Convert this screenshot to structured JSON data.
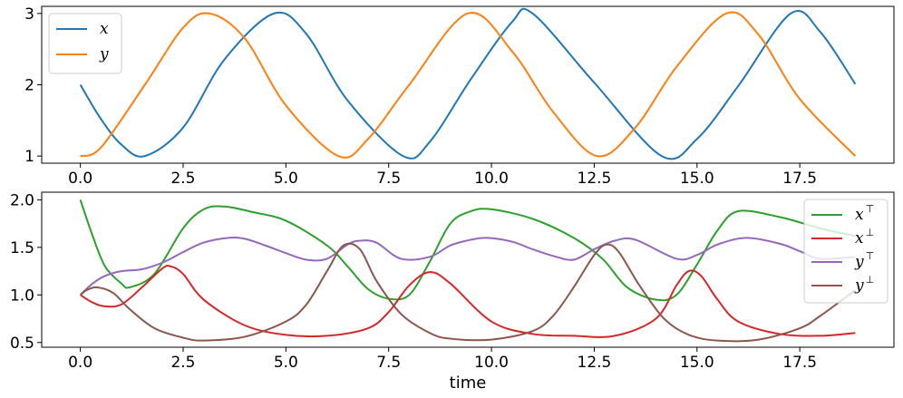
{
  "chart_data": [
    {
      "type": "line",
      "xlabel": "",
      "ylabel": "",
      "xlim": [
        -0.94,
        19.79
      ],
      "ylim": [
        0.9,
        3.1
      ],
      "xticks": [
        0,
        2.5,
        5,
        7.5,
        10,
        12.5,
        15,
        17.5
      ],
      "xtick_labels": [
        "0.0",
        "2.5",
        "5.0",
        "7.5",
        "10.0",
        "12.5",
        "15.0",
        "17.5"
      ],
      "yticks": [
        1,
        2,
        3
      ],
      "ytick_labels": [
        "1",
        "2",
        "3"
      ],
      "legend_placement": "top-left",
      "grid": false,
      "series": [
        {
          "name": "x",
          "color": "#1f77b4",
          "x": [
            0,
            0.5,
            1,
            1.57,
            2.5,
            3.5,
            4.71,
            5.5,
            6.5,
            7.85,
            8.5,
            9.5,
            10.5,
            11.0,
            12.5,
            14.14,
            15.0,
            16.0,
            17.28,
            18.0,
            18.85
          ],
          "y": [
            2.0,
            1.52,
            1.16,
            1.0,
            1.4,
            2.35,
            3.0,
            2.71,
            1.78,
            1.0,
            1.2,
            2.08,
            2.88,
            3.0,
            2.03,
            1.0,
            1.24,
            1.98,
            3.0,
            2.74,
            2.01
          ]
        },
        {
          "name": "y",
          "color": "#ff7f0e",
          "x": [
            0,
            0.5,
            1.57,
            2.5,
            3.14,
            4.0,
            5.0,
            6.28,
            7.0,
            8.0,
            9.42,
            10.5,
            11.5,
            12.57,
            13.5,
            14.5,
            15.71,
            16.5,
            17.5,
            18.85
          ],
          "y": [
            1.0,
            1.12,
            2.0,
            2.8,
            3.0,
            2.65,
            1.71,
            1.0,
            1.24,
            2.0,
            3.0,
            2.47,
            1.62,
            1.0,
            1.4,
            2.25,
            3.0,
            2.7,
            1.8,
            1.0
          ]
        }
      ]
    },
    {
      "type": "line",
      "xlabel": "time",
      "ylabel": "",
      "xlim": [
        -0.94,
        19.79
      ],
      "ylim": [
        0.45,
        2.08
      ],
      "xticks": [
        0,
        2.5,
        5,
        7.5,
        10,
        12.5,
        15,
        17.5
      ],
      "xtick_labels": [
        "0.0",
        "2.5",
        "5.0",
        "7.5",
        "10.0",
        "12.5",
        "15.0",
        "17.5"
      ],
      "yticks": [
        0.5,
        1.0,
        1.5,
        2.0
      ],
      "ytick_labels": [
        "0.5",
        "1.0",
        "1.5",
        "2.0"
      ],
      "legend_placement": "top-right",
      "grid": false,
      "series": [
        {
          "name": "x",
          "sup": "⊤",
          "color": "#2ca02c",
          "x": [
            0,
            0.3,
            0.6,
            1.0,
            1.2,
            1.8,
            2.5,
            3.0,
            3.5,
            4.2,
            5.0,
            6.0,
            6.5,
            7.0,
            7.5,
            8.0,
            8.5,
            9.0,
            9.5,
            10.0,
            11.0,
            12.0,
            12.7,
            13.3,
            14.0,
            14.5,
            15.0,
            15.5,
            16.0,
            17.0,
            18.0,
            18.85
          ],
          "y": [
            2.0,
            1.62,
            1.3,
            1.12,
            1.08,
            1.22,
            1.7,
            1.9,
            1.93,
            1.87,
            1.78,
            1.52,
            1.3,
            1.06,
            0.96,
            1.0,
            1.35,
            1.75,
            1.88,
            1.9,
            1.8,
            1.6,
            1.38,
            1.08,
            0.95,
            1.0,
            1.32,
            1.68,
            1.88,
            1.82,
            1.7,
            1.62
          ]
        },
        {
          "name": "x",
          "sup": "⊥",
          "color": "#d62728",
          "x": [
            0,
            0.3,
            0.6,
            1.0,
            1.5,
            2.0,
            2.2,
            2.5,
            3.0,
            4.0,
            5.0,
            6.0,
            7.0,
            7.5,
            8.0,
            8.5,
            9.0,
            10.0,
            11.0,
            12.0,
            13.0,
            14.0,
            14.5,
            14.8,
            15.1,
            15.5,
            16.0,
            17.0,
            18.0,
            18.85
          ],
          "y": [
            1.0,
            0.92,
            0.88,
            0.9,
            1.08,
            1.28,
            1.3,
            1.22,
            0.95,
            0.68,
            0.58,
            0.57,
            0.65,
            0.82,
            1.1,
            1.24,
            1.12,
            0.72,
            0.59,
            0.57,
            0.57,
            0.75,
            1.1,
            1.25,
            1.2,
            0.95,
            0.72,
            0.59,
            0.57,
            0.6
          ]
        },
        {
          "name": "y",
          "sup": "⊤",
          "color": "#9467bd",
          "x": [
            0,
            0.3,
            0.6,
            1.0,
            1.5,
            2.0,
            2.5,
            3.0,
            3.6,
            4.0,
            4.5,
            5.0,
            5.5,
            6.0,
            6.5,
            6.8,
            7.2,
            7.8,
            8.5,
            9.0,
            9.5,
            9.9,
            10.5,
            11.0,
            11.5,
            12.0,
            12.5,
            13.0,
            13.5,
            14.5,
            15.0,
            15.5,
            16.2,
            17.0,
            17.5,
            18.0,
            18.85
          ],
          "y": [
            1.0,
            1.12,
            1.2,
            1.25,
            1.27,
            1.34,
            1.45,
            1.55,
            1.6,
            1.59,
            1.52,
            1.44,
            1.37,
            1.38,
            1.53,
            1.57,
            1.55,
            1.38,
            1.4,
            1.52,
            1.58,
            1.6,
            1.56,
            1.48,
            1.41,
            1.37,
            1.48,
            1.57,
            1.58,
            1.38,
            1.42,
            1.53,
            1.6,
            1.54,
            1.46,
            1.38,
            1.4
          ]
        },
        {
          "name": "y",
          "sup": "⊥",
          "color": "#8c564b",
          "x": [
            0,
            0.15,
            0.4,
            0.8,
            1.2,
            1.8,
            2.5,
            3.0,
            4.0,
            5.0,
            5.5,
            6.0,
            6.4,
            6.8,
            7.2,
            7.8,
            8.5,
            9.0,
            10.0,
            11.0,
            11.5,
            12.0,
            12.5,
            12.8,
            13.1,
            13.6,
            14.2,
            14.8,
            15.5,
            16.5,
            17.5,
            18.0,
            18.85
          ],
          "y": [
            1.0,
            1.05,
            1.08,
            1.02,
            0.85,
            0.65,
            0.55,
            0.52,
            0.56,
            0.72,
            0.9,
            1.25,
            1.52,
            1.48,
            1.15,
            0.8,
            0.6,
            0.54,
            0.53,
            0.62,
            0.78,
            1.08,
            1.42,
            1.53,
            1.45,
            1.1,
            0.75,
            0.58,
            0.52,
            0.53,
            0.65,
            0.78,
            1.05
          ]
        }
      ]
    }
  ]
}
